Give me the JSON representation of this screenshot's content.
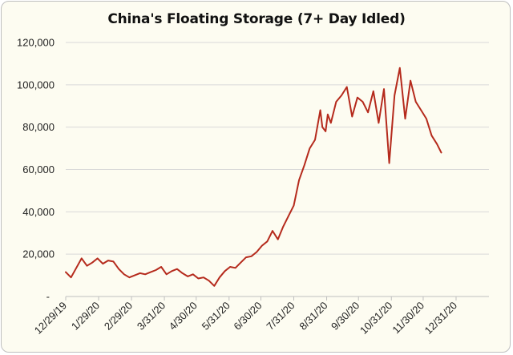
{
  "chart_data": {
    "type": "line",
    "title": "China's Floating Storage (7+ Day Idled)",
    "xlabel": "",
    "ylabel": "",
    "ylim": [
      0,
      120000
    ],
    "y_ticks": [
      0,
      20000,
      40000,
      60000,
      80000,
      100000,
      120000
    ],
    "y_tick_labels": [
      "-",
      "20,000",
      "40,000",
      "60,000",
      "80,000",
      "100,000",
      "120,000"
    ],
    "x_range": [
      "2019-12-29",
      "2021-01-31"
    ],
    "x_ticks": [
      "2019-12-29",
      "2020-01-29",
      "2020-02-29",
      "2020-03-31",
      "2020-04-30",
      "2020-05-31",
      "2020-06-30",
      "2020-07-31",
      "2020-08-31",
      "2020-09-30",
      "2020-10-31",
      "2020-11-30",
      "2020-12-31"
    ],
    "x_tick_labels": [
      "12/29/19",
      "1/29/20",
      "2/29/20",
      "3/31/20",
      "4/30/20",
      "5/31/20",
      "6/30/20",
      "7/31/20",
      "8/31/20",
      "9/30/20",
      "10/31/20",
      "11/30/20",
      "12/31/20"
    ],
    "grid": "horizontal",
    "line_color": "#b52a1c",
    "series": [
      {
        "name": "",
        "x": [
          "2019-12-29",
          "2020-01-03",
          "2020-01-08",
          "2020-01-13",
          "2020-01-18",
          "2020-01-23",
          "2020-01-28",
          "2020-02-02",
          "2020-02-07",
          "2020-02-12",
          "2020-02-17",
          "2020-02-22",
          "2020-02-27",
          "2020-03-03",
          "2020-03-08",
          "2020-03-13",
          "2020-03-18",
          "2020-03-23",
          "2020-03-28",
          "2020-04-02",
          "2020-04-07",
          "2020-04-12",
          "2020-04-17",
          "2020-04-22",
          "2020-04-27",
          "2020-05-02",
          "2020-05-07",
          "2020-05-12",
          "2020-05-17",
          "2020-05-22",
          "2020-05-27",
          "2020-06-01",
          "2020-06-06",
          "2020-06-11",
          "2020-06-16",
          "2020-06-21",
          "2020-06-26",
          "2020-07-01",
          "2020-07-06",
          "2020-07-11",
          "2020-07-16",
          "2020-07-21",
          "2020-07-26",
          "2020-07-31",
          "2020-08-05",
          "2020-08-10",
          "2020-08-15",
          "2020-08-20",
          "2020-08-25",
          "2020-08-27",
          "2020-08-30",
          "2020-09-01",
          "2020-09-04",
          "2020-09-09",
          "2020-09-14",
          "2020-09-19",
          "2020-09-24",
          "2020-09-29",
          "2020-10-04",
          "2020-10-09",
          "2020-10-14",
          "2020-10-19",
          "2020-10-24",
          "2020-10-29",
          "2020-11-03",
          "2020-11-08",
          "2020-11-13",
          "2020-11-18",
          "2020-11-23",
          "2020-11-28",
          "2020-12-03",
          "2020-12-08",
          "2020-12-13",
          "2020-12-17"
        ],
        "values": [
          11500,
          9000,
          13500,
          18000,
          14500,
          16000,
          18000,
          15500,
          17000,
          16500,
          13000,
          10500,
          9000,
          10000,
          11000,
          10500,
          11500,
          12500,
          14000,
          10500,
          12000,
          13000,
          11000,
          9500,
          10500,
          8500,
          9000,
          7500,
          5000,
          9000,
          12000,
          14000,
          13500,
          16000,
          18500,
          19000,
          21000,
          24000,
          26000,
          31000,
          27000,
          33000,
          38000,
          43000,
          55000,
          62000,
          70000,
          74000,
          88000,
          80000,
          78000,
          86000,
          82000,
          92000,
          95000,
          99000,
          85000,
          94000,
          92000,
          87000,
          97000,
          82000,
          98000,
          63000,
          95000,
          108000,
          84000,
          102000,
          92000,
          88000,
          84000,
          76000,
          72000,
          68000
        ]
      }
    ]
  }
}
